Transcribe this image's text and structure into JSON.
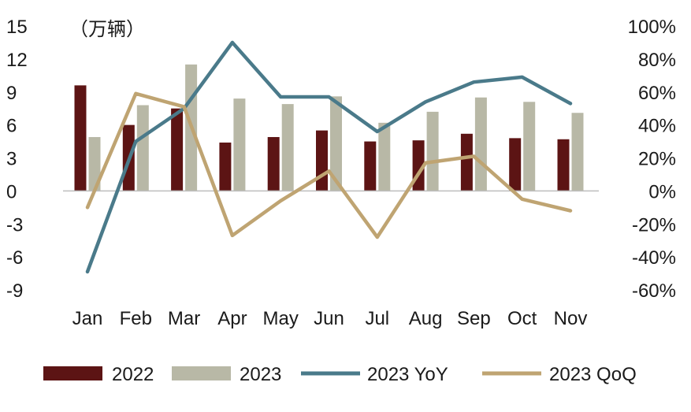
{
  "chart_data": {
    "type": "bar",
    "unit_label": "（万辆）",
    "categories": [
      "Jan",
      "Feb",
      "Mar",
      "Apr",
      "May",
      "Jun",
      "Jul",
      "Aug",
      "Sep",
      "Oct",
      "Nov"
    ],
    "y_left": {
      "ticks": [
        "15",
        "12",
        "9",
        "6",
        "3",
        "0",
        "-3",
        "-6",
        "-9"
      ],
      "range": [
        -9,
        15
      ]
    },
    "y_right": {
      "ticks": [
        "100%",
        "80%",
        "60%",
        "40%",
        "20%",
        "0%",
        "-20%",
        "-40%",
        "-60%"
      ],
      "range": [
        -60,
        100
      ]
    },
    "series": [
      {
        "name": "2022",
        "type": "bar",
        "axis": "left",
        "color": "#5c1414",
        "values": [
          9.6,
          6.0,
          7.5,
          4.4,
          4.9,
          5.5,
          4.5,
          4.6,
          5.2,
          4.8,
          4.7
        ]
      },
      {
        "name": "2023",
        "type": "bar",
        "axis": "left",
        "color": "#b8b8a6",
        "values": [
          4.9,
          7.8,
          11.5,
          8.4,
          7.9,
          8.6,
          6.2,
          7.2,
          8.5,
          8.1,
          7.1
        ]
      },
      {
        "name": "2023 YoY",
        "type": "line",
        "axis": "right",
        "color": "#4a7a8a",
        "values": [
          -49,
          30,
          50,
          90,
          57,
          57,
          36,
          54,
          66,
          69,
          53
        ]
      },
      {
        "name": "2023 QoQ",
        "type": "line",
        "axis": "right",
        "color": "#bfa472",
        "values": [
          -10,
          59,
          51,
          -27,
          -6,
          12,
          -28,
          17,
          21,
          -5,
          -12
        ]
      }
    ],
    "legend_position": "bottom",
    "grid": false
  }
}
